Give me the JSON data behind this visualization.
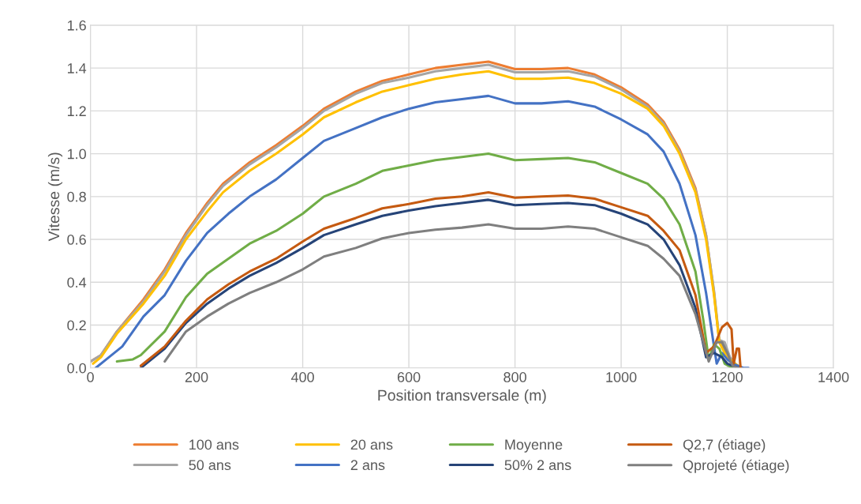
{
  "chart_data": {
    "type": "line",
    "xlabel": "Position transversale (m)",
    "ylabel": "Vitesse (m/s)",
    "xlim": [
      0,
      1400
    ],
    "xticks": [
      0,
      200,
      400,
      600,
      800,
      1000,
      1200,
      1400
    ],
    "ylim": [
      0,
      1.6
    ],
    "yticks": [
      {
        "value": 0,
        "label": "0.0"
      },
      {
        "value": 0.2,
        "label": "0.2"
      },
      {
        "value": 0.4,
        "label": "0.4"
      },
      {
        "value": 0.6,
        "label": "0.6"
      },
      {
        "value": 0.8,
        "label": "0.8"
      },
      {
        "value": 1.0,
        "label": "1.0"
      },
      {
        "value": 1.2,
        "label": "1.2"
      },
      {
        "value": 1.4,
        "label": "1.4"
      },
      {
        "value": 1.6,
        "label": "1.6"
      }
    ],
    "grid": true,
    "legend": "bottom",
    "marker": "none",
    "line_style": "solid",
    "series": [
      {
        "name": "100 ans",
        "color": "#ed7d31",
        "x": [
          0,
          20,
          50,
          100,
          140,
          180,
          220,
          250,
          300,
          350,
          400,
          440,
          500,
          550,
          600,
          650,
          700,
          750,
          800,
          850,
          900,
          950,
          1000,
          1050,
          1080,
          1110,
          1140,
          1160,
          1175,
          1185,
          1195,
          1205,
          1215,
          1225
        ],
        "values": [
          0.03,
          0.06,
          0.17,
          0.32,
          0.46,
          0.63,
          0.77,
          0.86,
          0.96,
          1.04,
          1.13,
          1.21,
          1.29,
          1.34,
          1.37,
          1.4,
          1.415,
          1.43,
          1.395,
          1.395,
          1.4,
          1.37,
          1.31,
          1.23,
          1.15,
          1.02,
          0.84,
          0.62,
          0.35,
          0.12,
          0.08,
          0.03,
          0.01,
          0.0
        ]
      },
      {
        "name": "50 ans",
        "color": "#a5a5a5",
        "x": [
          0,
          20,
          50,
          100,
          140,
          180,
          220,
          250,
          300,
          350,
          400,
          440,
          500,
          550,
          600,
          650,
          700,
          750,
          800,
          850,
          900,
          950,
          1000,
          1050,
          1080,
          1110,
          1140,
          1160,
          1175,
          1185,
          1195,
          1205,
          1215,
          1225
        ],
        "values": [
          0.03,
          0.06,
          0.17,
          0.31,
          0.45,
          0.62,
          0.76,
          0.85,
          0.95,
          1.03,
          1.12,
          1.2,
          1.28,
          1.33,
          1.355,
          1.385,
          1.4,
          1.415,
          1.38,
          1.38,
          1.385,
          1.36,
          1.3,
          1.22,
          1.14,
          1.01,
          0.83,
          0.62,
          0.36,
          0.13,
          0.12,
          0.05,
          0.02,
          0.0
        ]
      },
      {
        "name": "20 ans",
        "color": "#ffc000",
        "x": [
          5,
          20,
          50,
          100,
          140,
          180,
          220,
          250,
          300,
          350,
          400,
          440,
          500,
          550,
          600,
          650,
          700,
          750,
          800,
          850,
          900,
          950,
          1000,
          1050,
          1080,
          1110,
          1140,
          1160,
          1175,
          1185,
          1195,
          1205,
          1215,
          1225
        ],
        "values": [
          0.02,
          0.05,
          0.16,
          0.3,
          0.43,
          0.6,
          0.73,
          0.82,
          0.92,
          1.0,
          1.09,
          1.17,
          1.24,
          1.29,
          1.32,
          1.35,
          1.37,
          1.385,
          1.35,
          1.35,
          1.355,
          1.33,
          1.28,
          1.21,
          1.13,
          1.0,
          0.82,
          0.6,
          0.34,
          0.12,
          0.07,
          0.04,
          0.02,
          0.0
        ]
      },
      {
        "name": "2 ans",
        "color": "#4472c4",
        "x": [
          10,
          30,
          60,
          100,
          140,
          180,
          220,
          260,
          300,
          350,
          400,
          440,
          500,
          550,
          600,
          650,
          700,
          750,
          800,
          850,
          900,
          950,
          1000,
          1050,
          1080,
          1110,
          1140,
          1160,
          1175,
          1180,
          1190,
          1200,
          1210,
          1230,
          1240
        ],
        "values": [
          0.0,
          0.04,
          0.1,
          0.24,
          0.34,
          0.5,
          0.63,
          0.72,
          0.8,
          0.88,
          0.98,
          1.06,
          1.12,
          1.17,
          1.21,
          1.24,
          1.255,
          1.27,
          1.235,
          1.235,
          1.245,
          1.22,
          1.16,
          1.09,
          1.01,
          0.86,
          0.62,
          0.35,
          0.1,
          0.02,
          0.07,
          0.04,
          0.02,
          0.0,
          0.0
        ]
      },
      {
        "name": "Moyenne",
        "color": "#70ad47",
        "x": [
          50,
          80,
          95,
          140,
          180,
          220,
          260,
          300,
          350,
          400,
          440,
          500,
          550,
          600,
          650,
          700,
          750,
          800,
          850,
          900,
          950,
          1000,
          1050,
          1080,
          1110,
          1140,
          1155,
          1165,
          1175,
          1185,
          1195,
          1210
        ],
        "values": [
          0.03,
          0.04,
          0.06,
          0.17,
          0.33,
          0.44,
          0.51,
          0.58,
          0.64,
          0.72,
          0.8,
          0.86,
          0.92,
          0.945,
          0.97,
          0.985,
          1.0,
          0.97,
          0.975,
          0.98,
          0.96,
          0.91,
          0.86,
          0.79,
          0.67,
          0.45,
          0.22,
          0.04,
          0.11,
          0.09,
          0.02,
          0.0
        ]
      },
      {
        "name": "50% 2 ans",
        "color": "#264478",
        "x": [
          95,
          140,
          180,
          220,
          260,
          300,
          350,
          400,
          440,
          500,
          550,
          600,
          650,
          700,
          750,
          800,
          850,
          900,
          950,
          1000,
          1050,
          1080,
          1110,
          1140,
          1160,
          1175,
          1190,
          1200,
          1220
        ],
        "values": [
          0.0,
          0.09,
          0.21,
          0.3,
          0.37,
          0.43,
          0.49,
          0.56,
          0.62,
          0.67,
          0.71,
          0.735,
          0.755,
          0.77,
          0.785,
          0.76,
          0.765,
          0.77,
          0.76,
          0.72,
          0.67,
          0.6,
          0.48,
          0.28,
          0.05,
          0.07,
          0.05,
          0.02,
          0.0
        ]
      },
      {
        "name": "Q2,7 (étiage)",
        "color": "#c55a11",
        "x": [
          95,
          140,
          180,
          220,
          260,
          300,
          350,
          400,
          440,
          500,
          550,
          600,
          650,
          700,
          750,
          800,
          850,
          900,
          950,
          1000,
          1050,
          1080,
          1110,
          1140,
          1160,
          1175,
          1190,
          1200,
          1208,
          1212,
          1218,
          1222,
          1225
        ],
        "values": [
          0.01,
          0.1,
          0.22,
          0.32,
          0.39,
          0.45,
          0.51,
          0.59,
          0.65,
          0.7,
          0.745,
          0.765,
          0.79,
          0.8,
          0.82,
          0.795,
          0.8,
          0.805,
          0.79,
          0.75,
          0.71,
          0.64,
          0.55,
          0.34,
          0.07,
          0.1,
          0.19,
          0.21,
          0.18,
          0.02,
          0.09,
          0.09,
          0.0
        ]
      },
      {
        "name": "Qprojeté (étiage)",
        "color": "#7f7f7f",
        "x": [
          140,
          180,
          220,
          260,
          300,
          350,
          400,
          440,
          500,
          550,
          600,
          650,
          700,
          750,
          800,
          850,
          900,
          950,
          1000,
          1050,
          1080,
          1110,
          1140,
          1165,
          1180,
          1190,
          1200,
          1210,
          1220
        ],
        "values": [
          0.03,
          0.17,
          0.24,
          0.3,
          0.35,
          0.4,
          0.46,
          0.52,
          0.56,
          0.605,
          0.63,
          0.645,
          0.655,
          0.67,
          0.65,
          0.65,
          0.66,
          0.65,
          0.61,
          0.57,
          0.51,
          0.43,
          0.25,
          0.03,
          0.12,
          0.12,
          0.07,
          0.01,
          0.0
        ]
      }
    ]
  }
}
